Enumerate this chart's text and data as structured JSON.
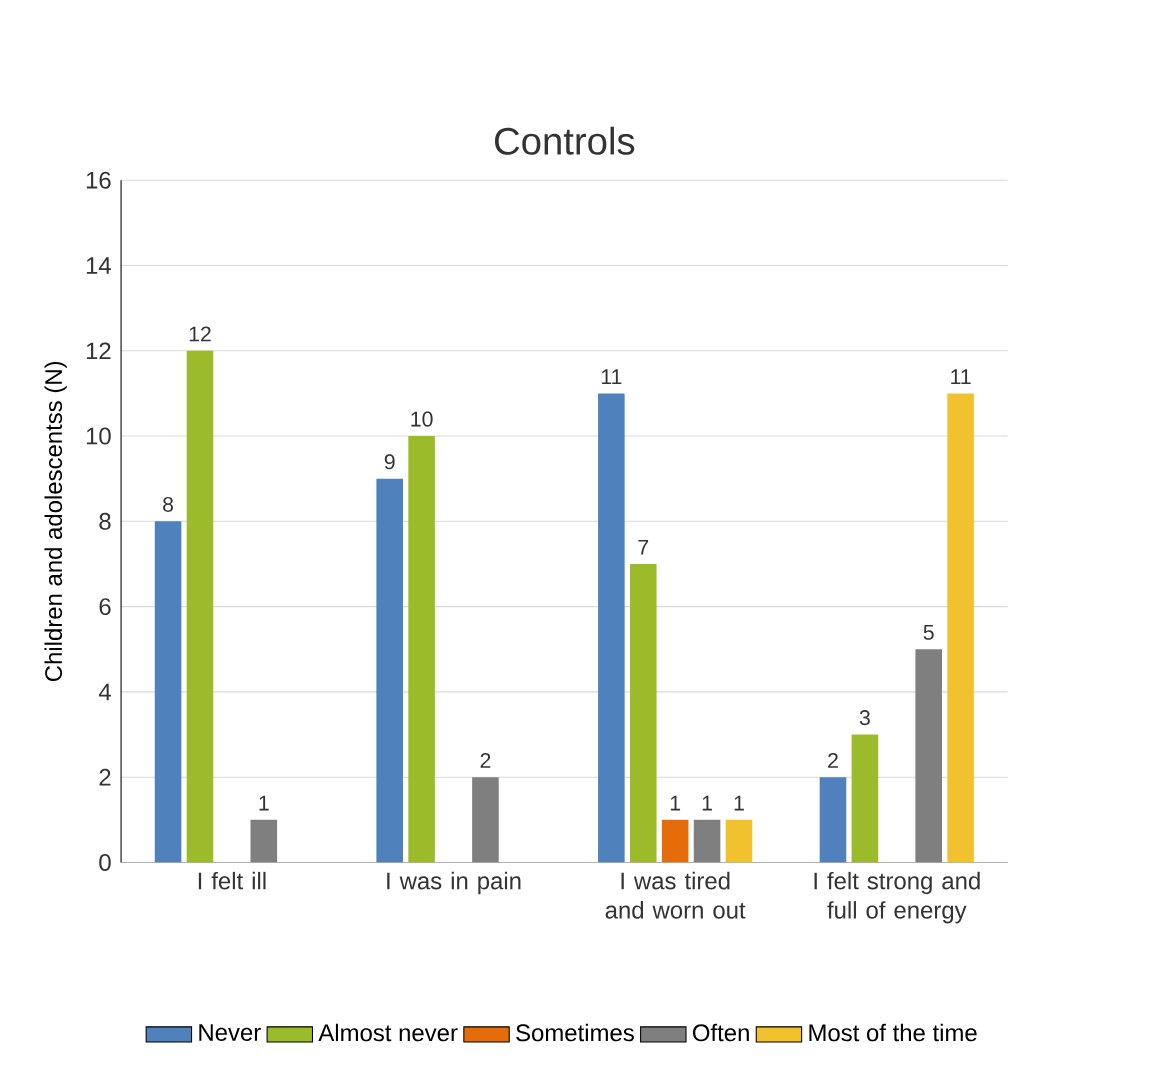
{
  "chart_data": {
    "type": "bar",
    "title": "Controls",
    "ylabel": "Children and adolescentss (N)",
    "categories": [
      "I felt ill",
      "I was in pain",
      "I  was tired and worn out",
      "I felt strong and full of energy"
    ],
    "series": [
      {
        "name": "Never",
        "color": "#4f81bd",
        "values": [
          8,
          9,
          11,
          2
        ],
        "value_labels": [
          "8",
          "9",
          "11",
          "2"
        ]
      },
      {
        "name": "Almost never",
        "color": "#9bbb2a",
        "values": [
          12,
          10,
          7,
          3
        ],
        "value_labels": [
          "12",
          "10",
          "7",
          "3"
        ]
      },
      {
        "name": "Sometimes",
        "color": "#e46c0a",
        "values": [
          0,
          0,
          1,
          0
        ],
        "value_labels": [
          null,
          null,
          "1",
          null
        ]
      },
      {
        "name": "Often",
        "color": "#7f7f7f",
        "values": [
          1,
          2,
          1,
          5
        ],
        "value_labels": [
          "1",
          "2",
          "1",
          "5"
        ]
      },
      {
        "name": "Most of the time",
        "color": "#f2c12e",
        "values": [
          0,
          0,
          1,
          11
        ],
        "value_labels": [
          null,
          null,
          "1",
          "11"
        ]
      }
    ],
    "ylim": [
      0,
      16
    ],
    "yticks": [
      0,
      2,
      4,
      6,
      8,
      10,
      12,
      14,
      16
    ],
    "grid": "y",
    "legend": "bottom"
  }
}
